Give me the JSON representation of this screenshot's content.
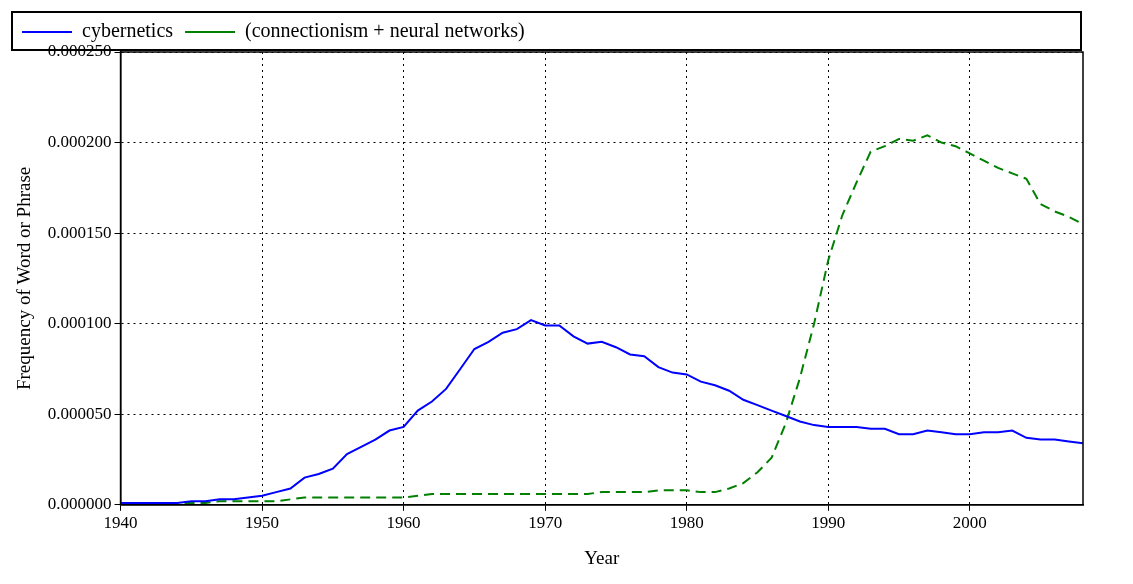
{
  "chart_data": {
    "type": "line",
    "x_label": "Year",
    "y_label": "Frequency of Word or Phrase",
    "x": [
      1940,
      1941,
      1942,
      1943,
      1944,
      1945,
      1946,
      1947,
      1948,
      1949,
      1950,
      1951,
      1952,
      1953,
      1954,
      1955,
      1956,
      1957,
      1958,
      1959,
      1960,
      1961,
      1962,
      1963,
      1964,
      1965,
      1966,
      1967,
      1968,
      1969,
      1970,
      1971,
      1972,
      1973,
      1974,
      1975,
      1976,
      1977,
      1978,
      1979,
      1980,
      1981,
      1982,
      1983,
      1984,
      1985,
      1986,
      1987,
      1988,
      1989,
      1990,
      1991,
      1992,
      1993,
      1994,
      1995,
      1996,
      1997,
      1998,
      1999,
      2000,
      2001,
      2002,
      2003,
      2004,
      2005,
      2006,
      2007,
      2008
    ],
    "series": [
      {
        "name": "cybernetics",
        "color": "#0000ff",
        "line_style": "solid",
        "values": [
          1e-06,
          1e-06,
          1e-06,
          1e-06,
          1e-06,
          2e-06,
          2e-06,
          3e-06,
          3e-06,
          4e-06,
          5e-06,
          7e-06,
          9e-06,
          1.5e-05,
          1.7e-05,
          2e-05,
          2.8e-05,
          3.2e-05,
          3.6e-05,
          4.1e-05,
          4.3e-05,
          5.2e-05,
          5.7e-05,
          6.4e-05,
          7.5e-05,
          8.6e-05,
          9e-05,
          9.5e-05,
          9.7e-05,
          0.000102,
          9.9e-05,
          9.9e-05,
          9.3e-05,
          8.9e-05,
          9e-05,
          8.7e-05,
          8.3e-05,
          8.2e-05,
          7.6e-05,
          7.3e-05,
          7.2e-05,
          6.8e-05,
          6.6e-05,
          6.3e-05,
          5.8e-05,
          5.5e-05,
          5.2e-05,
          4.9e-05,
          4.6e-05,
          4.4e-05,
          4.3e-05,
          4.3e-05,
          4.3e-05,
          4.2e-05,
          4.2e-05,
          3.9e-05,
          3.9e-05,
          4.1e-05,
          4e-05,
          3.9e-05,
          3.9e-05,
          4e-05,
          4e-05,
          4.1e-05,
          3.7e-05,
          3.6e-05,
          3.6e-05,
          3.5e-05,
          3.4e-05
        ]
      },
      {
        "name": "(connectionism + neural networks)",
        "color": "#008000",
        "line_style": "dashed",
        "values": [
          1e-06,
          1e-06,
          1e-06,
          1e-06,
          1e-06,
          1e-06,
          1e-06,
          2e-06,
          2e-06,
          2e-06,
          2e-06,
          2e-06,
          3e-06,
          4e-06,
          4e-06,
          4e-06,
          4e-06,
          4e-06,
          4e-06,
          4e-06,
          4e-06,
          5e-06,
          6e-06,
          6e-06,
          6e-06,
          6e-06,
          6e-06,
          6e-06,
          6e-06,
          6e-06,
          6e-06,
          6e-06,
          6e-06,
          6e-06,
          7e-06,
          7e-06,
          7e-06,
          7e-06,
          8e-06,
          8e-06,
          8e-06,
          7e-06,
          7e-06,
          9e-06,
          1.2e-05,
          1.8e-05,
          2.6e-05,
          4.5e-05,
          7e-05,
          0.0001,
          0.000135,
          0.00016,
          0.000178,
          0.000195,
          0.000198,
          0.000202,
          0.000201,
          0.000204,
          0.0002,
          0.000198,
          0.000194,
          0.00019,
          0.000186,
          0.000183,
          0.00018,
          0.000166,
          0.000162,
          0.000159,
          0.000155
        ]
      }
    ],
    "xlim": [
      1940,
      2008
    ],
    "xticks": [
      1940,
      1950,
      1960,
      1970,
      1980,
      1990,
      2000
    ],
    "ylim": [
      0,
      0.00025
    ],
    "yticks": [
      {
        "value": 0,
        "label": "0.000000"
      },
      {
        "value": 5e-05,
        "label": "0.000050"
      },
      {
        "value": 0.0001,
        "label": "0.000100"
      },
      {
        "value": 0.00015,
        "label": "0.000150"
      },
      {
        "value": 0.0002,
        "label": "0.000200"
      },
      {
        "value": 0.00025,
        "label": "0.000250"
      }
    ],
    "grid": true,
    "legend": "upper left"
  }
}
